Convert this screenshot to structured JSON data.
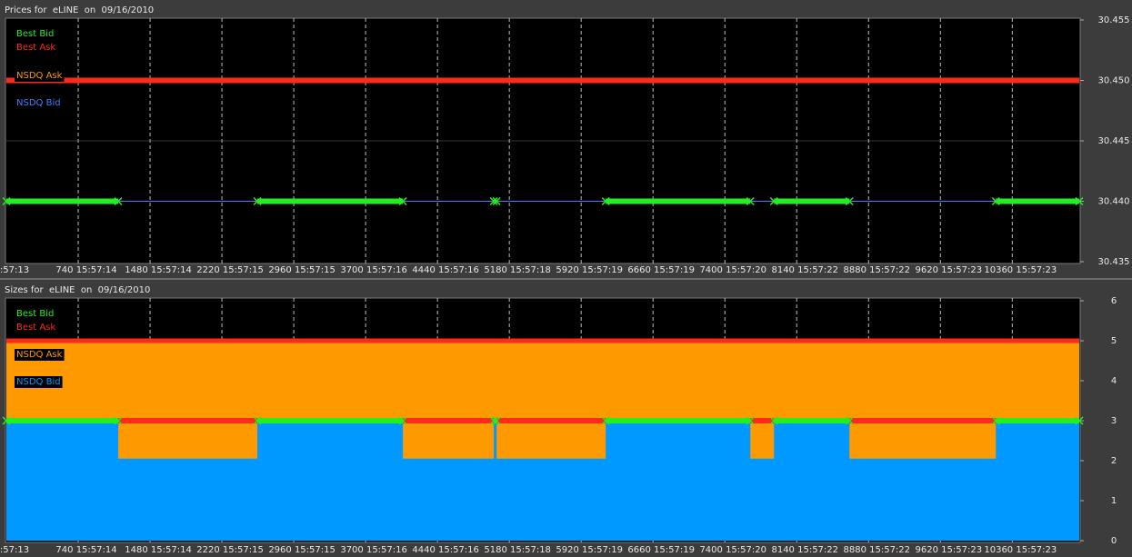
{
  "chart_data": [
    {
      "type": "line",
      "title": "Prices for  eLINE  on  09/16/2010",
      "xlim": [
        0,
        11050
      ],
      "xticks": [
        {
          "value": 0,
          "label": ":57:13"
        },
        {
          "value": 740,
          "label": "740 15:57:14"
        },
        {
          "value": 1480,
          "label": "1480 15:57:14"
        },
        {
          "value": 2220,
          "label": "2220 15:57:15"
        },
        {
          "value": 2960,
          "label": "2960 15:57:15"
        },
        {
          "value": 3700,
          "label": "3700 15:57:16"
        },
        {
          "value": 4440,
          "label": "4440 15:57:16"
        },
        {
          "value": 5180,
          "label": "5180 15:57:18"
        },
        {
          "value": 5920,
          "label": "5920 15:57:19"
        },
        {
          "value": 6660,
          "label": "6660 15:57:19"
        },
        {
          "value": 7400,
          "label": "7400 15:57:20"
        },
        {
          "value": 8140,
          "label": "8140 15:57:22"
        },
        {
          "value": 8880,
          "label": "8880 15:57:22"
        },
        {
          "value": 9620,
          "label": "9620 15:57:23"
        },
        {
          "value": 10360,
          "label": "10360 15:57:23"
        }
      ],
      "ylim": [
        30.435,
        30.455
      ],
      "yticks": [
        {
          "value": 30.435,
          "label": "30.435"
        },
        {
          "value": 30.44,
          "label": "30.440"
        },
        {
          "value": 30.445,
          "label": "30.445"
        },
        {
          "value": 30.45,
          "label": "30.450"
        },
        {
          "value": 30.455,
          "label": "30.455"
        }
      ],
      "grid": true,
      "series": [
        {
          "name": "Best Bid",
          "color": "#22ee22",
          "width": 6,
          "marker": "x",
          "x": [
            0,
            1152,
            1800,
            2585,
            4084,
            4500,
            5021,
            5049,
            5600,
            6173,
            7662,
            7780,
            7906,
            8683,
            9400,
            10191,
            11050
          ],
          "values": [
            30.44,
            30.44,
            null,
            30.44,
            30.44,
            null,
            30.44,
            30.44,
            null,
            30.44,
            30.44,
            null,
            30.44,
            30.44,
            null,
            30.44,
            30.44
          ]
        },
        {
          "name": "Best Ask",
          "color": "#ff2a1a",
          "width": 6,
          "x": [
            0,
            11050
          ],
          "values": [
            30.45,
            30.45
          ]
        },
        {
          "name": "NSDQ Ask",
          "color": "#ff9900",
          "width": 2,
          "x": [
            0,
            11050
          ],
          "values": [
            30.45,
            30.45
          ]
        },
        {
          "name": "NSDQ Bid",
          "color": "#3a7fff",
          "width": 1,
          "x": [
            0,
            11050
          ],
          "values": [
            30.44,
            30.44
          ]
        }
      ]
    },
    {
      "type": "area",
      "title": "Sizes for  eLINE  on  09/16/2010",
      "xlim": [
        0,
        11050
      ],
      "xticks": [
        {
          "value": 0,
          "label": ":57:13"
        },
        {
          "value": 740,
          "label": "740 15:57:14"
        },
        {
          "value": 1480,
          "label": "1480 15:57:14"
        },
        {
          "value": 2220,
          "label": "2220 15:57:15"
        },
        {
          "value": 2960,
          "label": "2960 15:57:15"
        },
        {
          "value": 3700,
          "label": "3700 15:57:16"
        },
        {
          "value": 4440,
          "label": "4440 15:57:16"
        },
        {
          "value": 5180,
          "label": "5180 15:57:18"
        },
        {
          "value": 5920,
          "label": "5920 15:57:19"
        },
        {
          "value": 6660,
          "label": "6660 15:57:19"
        },
        {
          "value": 7400,
          "label": "7400 15:57:20"
        },
        {
          "value": 8140,
          "label": "8140 15:57:22"
        },
        {
          "value": 8880,
          "label": "8880 15:57:22"
        },
        {
          "value": 9620,
          "label": "9620 15:57:23"
        },
        {
          "value": 10360,
          "label": "10360 15:57:23"
        }
      ],
      "ylim": [
        0,
        6
      ],
      "yticks": [
        0,
        1,
        2,
        3,
        4,
        5,
        6
      ],
      "grid": true,
      "series": [
        {
          "name": "Best Bid",
          "color": "#22ee22",
          "width": 6,
          "marker": "x",
          "x": [
            0,
            1152,
            1800,
            2585,
            4084,
            4500,
            5021,
            5049,
            5600,
            6173,
            7662,
            7780,
            7906,
            8683,
            9400,
            10191,
            11050
          ],
          "values": [
            3,
            3,
            null,
            3,
            3,
            null,
            3,
            3,
            null,
            3,
            3,
            null,
            3,
            3,
            null,
            3,
            3
          ]
        },
        {
          "name": "Best Ask",
          "color": "#ff2a1a",
          "width": 6,
          "x": [
            1152,
            2585,
            3300,
            4084,
            5021,
            5035,
            5049,
            6173,
            6900,
            7662,
            7906,
            8300,
            8683,
            10191
          ],
          "values": [
            3,
            3,
            null,
            3,
            3,
            null,
            3,
            3,
            null,
            3,
            3,
            null,
            3,
            3
          ]
        },
        {
          "name": "NSDQ Ask",
          "color": "#ff9900",
          "fill": "area",
          "stroke": "#ff2a1a",
          "x": [
            0,
            11050
          ],
          "values": [
            5,
            5
          ]
        },
        {
          "name": "NSDQ Bid",
          "color": "#0099ff",
          "fill": "area",
          "x": [
            0,
            1152,
            1152,
            2585,
            2585,
            4084,
            4084,
            5021,
            5021,
            5049,
            5049,
            6173,
            6173,
            7662,
            7662,
            7906,
            7906,
            8683,
            8683,
            10191,
            10191,
            11050
          ],
          "values": [
            3,
            3,
            2.05,
            2.05,
            3,
            3,
            2.05,
            2.05,
            3,
            3,
            2.05,
            2.05,
            3,
            3,
            2.05,
            2.05,
            3,
            3,
            2.05,
            2.05,
            3,
            3
          ]
        }
      ]
    }
  ]
}
